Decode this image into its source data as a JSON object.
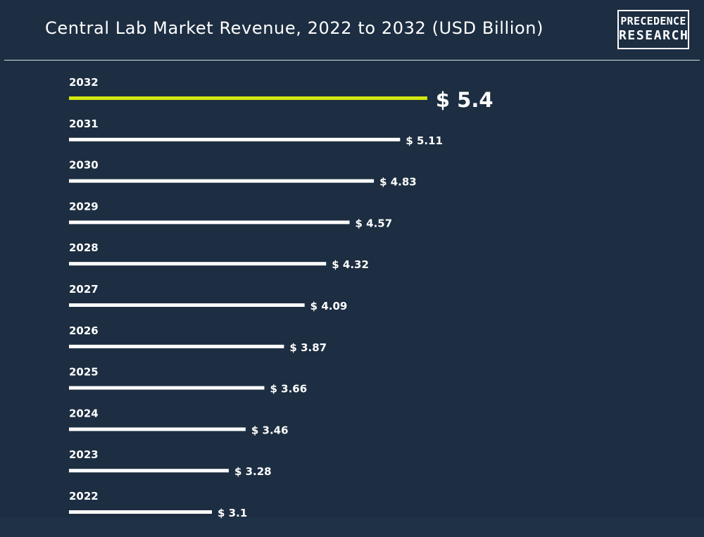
{
  "header": {
    "title": "Central Lab Market Revenue, 2022 to 2032 (USD Billion)",
    "logo_line1": "PRECEDENCE",
    "logo_line2": "RESEARCH"
  },
  "colors": {
    "background": "#1d2e42",
    "bar": "#ffffff",
    "highlight": "#d4e60f",
    "text": "#ffffff"
  },
  "chart_data": {
    "type": "bar",
    "orientation": "horizontal",
    "title": "Central Lab Market Revenue, 2022 to 2032 (USD Billion)",
    "categories": [
      "2032",
      "2031",
      "2030",
      "2029",
      "2028",
      "2027",
      "2026",
      "2025",
      "2024",
      "2023",
      "2022"
    ],
    "values": [
      5.4,
      5.11,
      4.83,
      4.57,
      4.32,
      4.09,
      3.87,
      3.66,
      3.46,
      3.28,
      3.1
    ],
    "value_labels": [
      "$ 5.4",
      "$ 5.11",
      "$ 4.83",
      "$ 4.57",
      "$ 4.32",
      "$ 4.09",
      "$ 3.87",
      "$ 3.66",
      "$ 3.46",
      "$ 3.28",
      "$ 3.1"
    ],
    "highlight_category": "2032",
    "grid": false,
    "legend": "none"
  }
}
